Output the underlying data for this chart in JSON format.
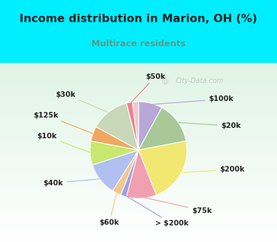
{
  "title": "Income distribution in Marion, OH (%)",
  "subtitle": "Multirace residents",
  "title_color": "#222222",
  "subtitle_color": "#5b9a8a",
  "bg_color_top": "#00eeff",
  "bg_color_chart": "#dff0e8",
  "slices": [
    {
      "label": "$100k",
      "value": 8,
      "color": "#b8a8d8"
    },
    {
      "label": "$20k",
      "value": 14,
      "color": "#a8c898"
    },
    {
      "label": "$200k",
      "value": 22,
      "color": "#f0e870"
    },
    {
      "label": "$75k",
      "value": 10,
      "color": "#f0a0b0"
    },
    {
      "label": "> $200k",
      "value": 2,
      "color": "#a0a0e0"
    },
    {
      "label": "$60k",
      "value": 3,
      "color": "#f0c890"
    },
    {
      "label": "$40k",
      "value": 11,
      "color": "#b0c0f0"
    },
    {
      "label": "$10k",
      "value": 8,
      "color": "#c8e870"
    },
    {
      "label": "$125k",
      "value": 5,
      "color": "#f0a860"
    },
    {
      "label": "$30k",
      "value": 13,
      "color": "#c8d8b8"
    },
    {
      "label": "$50k",
      "value": 2,
      "color": "#f08090"
    },
    {
      "label": "$50k_b",
      "value": 2,
      "color": "#f0c8c8"
    }
  ],
  "watermark": "City-Data.com"
}
